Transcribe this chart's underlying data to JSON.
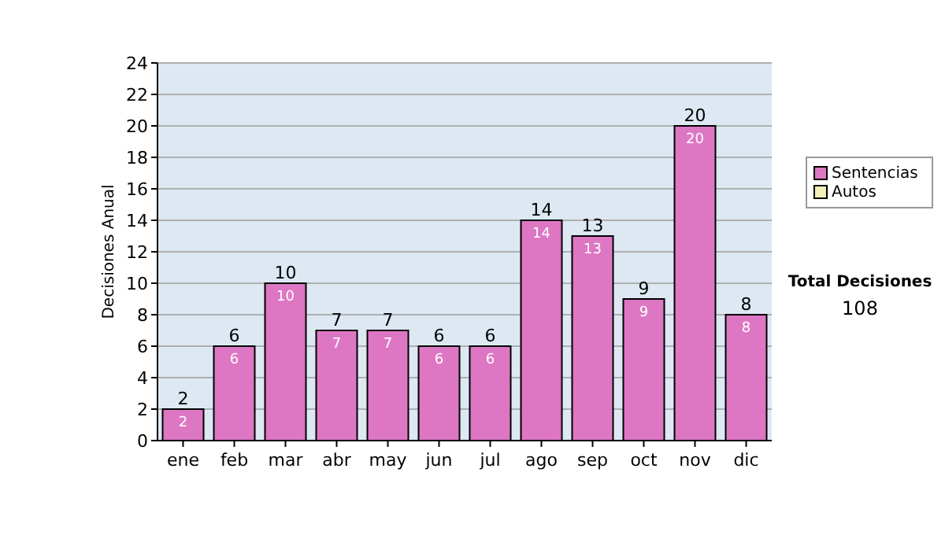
{
  "chart_data": {
    "type": "bar",
    "ylabel": "Decisiones Anual",
    "categories": [
      "ene",
      "feb",
      "mar",
      "abr",
      "may",
      "jun",
      "jul",
      "ago",
      "sep",
      "oct",
      "nov",
      "dic"
    ],
    "series": [
      {
        "name": "Sentencias",
        "color": "#dd77c4",
        "values": [
          2,
          6,
          10,
          7,
          7,
          6,
          6,
          14,
          13,
          9,
          20,
          8
        ],
        "value_labels": [
          "2",
          "6",
          "10",
          "7",
          "7",
          "6",
          "6",
          "14",
          "13",
          "9",
          "20",
          "8"
        ]
      },
      {
        "name": "Autos",
        "color": "#f0f0b8",
        "values": [
          0,
          0,
          0,
          0,
          0,
          0,
          0,
          0,
          0,
          0,
          0,
          0
        ]
      }
    ],
    "stacked": true,
    "totals": [
      "2",
      "6",
      "10",
      "7",
      "7",
      "6",
      "6",
      "14",
      "13",
      "9",
      "20",
      "8"
    ],
    "ylim": [
      0,
      24
    ],
    "yticks": [
      0,
      2,
      4,
      6,
      8,
      10,
      12,
      14,
      16,
      18,
      20,
      22,
      24
    ],
    "grid": "y",
    "legend": "right",
    "annotations": [
      "Total Decisiones",
      "108"
    ]
  }
}
